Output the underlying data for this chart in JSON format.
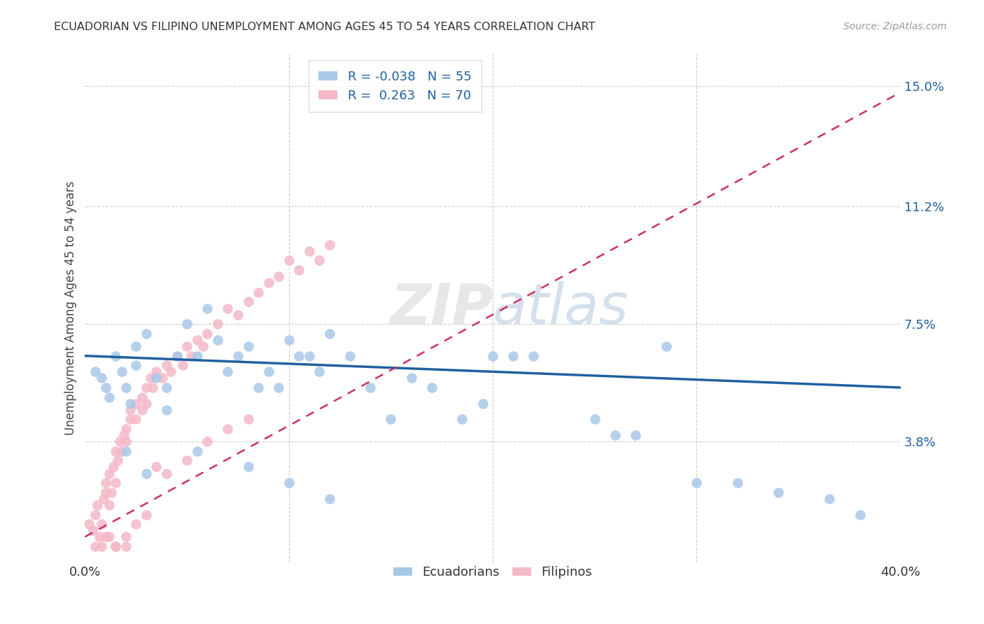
{
  "title": "ECUADORIAN VS FILIPINO UNEMPLOYMENT AMONG AGES 45 TO 54 YEARS CORRELATION CHART",
  "source": "Source: ZipAtlas.com",
  "ylabel": "Unemployment Among Ages 45 to 54 years",
  "xlim": [
    0.0,
    0.4
  ],
  "ylim": [
    0.0,
    0.16
  ],
  "yticks": [
    0.0,
    0.038,
    0.075,
    0.112,
    0.15
  ],
  "ytick_labels": [
    "",
    "3.8%",
    "7.5%",
    "11.2%",
    "15.0%"
  ],
  "xticks": [
    0.0,
    0.1,
    0.2,
    0.3,
    0.4
  ],
  "xtick_labels": [
    "0.0%",
    "",
    "",
    "",
    "40.0%"
  ],
  "blue_color": "#a8c8e8",
  "pink_color": "#f4b8c8",
  "blue_line_color": "#2060a0",
  "pink_line_color": "#cc3060",
  "legend_R_blue": "-0.038",
  "legend_N_blue": "55",
  "legend_R_pink": "0.263",
  "legend_N_pink": "70",
  "text_color_blue": "#2060a0",
  "grid_color": "#cccccc",
  "ecuadorians_x": [
    0.005,
    0.008,
    0.01,
    0.012,
    0.015,
    0.018,
    0.02,
    0.022,
    0.025,
    0.025,
    0.03,
    0.035,
    0.04,
    0.04,
    0.045,
    0.05,
    0.055,
    0.06,
    0.065,
    0.07,
    0.075,
    0.08,
    0.085,
    0.09,
    0.095,
    0.1,
    0.105,
    0.11,
    0.115,
    0.12,
    0.13,
    0.14,
    0.15,
    0.16,
    0.17,
    0.185,
    0.195,
    0.2,
    0.21,
    0.22,
    0.25,
    0.26,
    0.27,
    0.285,
    0.3,
    0.32,
    0.34,
    0.365,
    0.38,
    0.02,
    0.03,
    0.055,
    0.08,
    0.1,
    0.12
  ],
  "ecuadorians_y": [
    0.06,
    0.058,
    0.055,
    0.052,
    0.065,
    0.06,
    0.055,
    0.05,
    0.068,
    0.062,
    0.072,
    0.058,
    0.055,
    0.048,
    0.065,
    0.075,
    0.065,
    0.08,
    0.07,
    0.06,
    0.065,
    0.068,
    0.055,
    0.06,
    0.055,
    0.07,
    0.065,
    0.065,
    0.06,
    0.072,
    0.065,
    0.055,
    0.045,
    0.058,
    0.055,
    0.045,
    0.05,
    0.065,
    0.065,
    0.065,
    0.045,
    0.04,
    0.04,
    0.068,
    0.025,
    0.025,
    0.022,
    0.02,
    0.015,
    0.035,
    0.028,
    0.035,
    0.03,
    0.025,
    0.02
  ],
  "filipinos_x": [
    0.002,
    0.004,
    0.005,
    0.006,
    0.007,
    0.008,
    0.009,
    0.01,
    0.01,
    0.012,
    0.012,
    0.013,
    0.014,
    0.015,
    0.015,
    0.016,
    0.017,
    0.018,
    0.019,
    0.02,
    0.02,
    0.022,
    0.022,
    0.025,
    0.025,
    0.028,
    0.028,
    0.03,
    0.03,
    0.032,
    0.033,
    0.035,
    0.038,
    0.04,
    0.042,
    0.045,
    0.048,
    0.05,
    0.052,
    0.055,
    0.058,
    0.06,
    0.065,
    0.07,
    0.075,
    0.08,
    0.085,
    0.09,
    0.095,
    0.1,
    0.105,
    0.11,
    0.115,
    0.12,
    0.035,
    0.04,
    0.05,
    0.06,
    0.07,
    0.08,
    0.015,
    0.02,
    0.025,
    0.03,
    0.005,
    0.008,
    0.01,
    0.012,
    0.015,
    0.02
  ],
  "filipinos_y": [
    0.012,
    0.01,
    0.015,
    0.018,
    0.008,
    0.012,
    0.02,
    0.022,
    0.025,
    0.018,
    0.028,
    0.022,
    0.03,
    0.025,
    0.035,
    0.032,
    0.038,
    0.035,
    0.04,
    0.042,
    0.038,
    0.045,
    0.048,
    0.05,
    0.045,
    0.052,
    0.048,
    0.055,
    0.05,
    0.058,
    0.055,
    0.06,
    0.058,
    0.062,
    0.06,
    0.065,
    0.062,
    0.068,
    0.065,
    0.07,
    0.068,
    0.072,
    0.075,
    0.08,
    0.078,
    0.082,
    0.085,
    0.088,
    0.09,
    0.095,
    0.092,
    0.098,
    0.095,
    0.1,
    0.03,
    0.028,
    0.032,
    0.038,
    0.042,
    0.045,
    0.005,
    0.008,
    0.012,
    0.015,
    0.005,
    0.005,
    0.008,
    0.008,
    0.005,
    0.005
  ],
  "blue_trendline_x": [
    0.0,
    0.4
  ],
  "blue_trendline_y": [
    0.065,
    0.055
  ],
  "pink_trendline_x": [
    0.0,
    0.4
  ],
  "pink_trendline_y": [
    0.008,
    0.148
  ]
}
